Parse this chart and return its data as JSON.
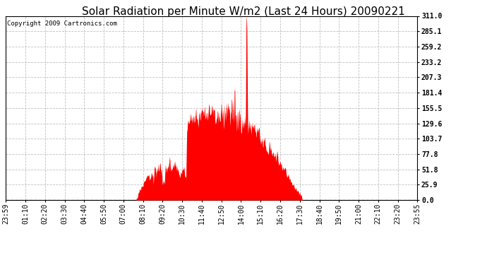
{
  "title": "Solar Radiation per Minute W/m2 (Last 24 Hours) 20090221",
  "copyright_text": "Copyright 2009 Cartronics.com",
  "bg_color": "#ffffff",
  "plot_bg_color": "#ffffff",
  "fill_color": "#ff0000",
  "line_color": "#ff0000",
  "grid_color": "#c0c0c0",
  "dashed_line_color": "#ff0000",
  "y_ticks": [
    0.0,
    25.9,
    51.8,
    77.8,
    103.7,
    129.6,
    155.5,
    181.4,
    207.3,
    233.2,
    259.2,
    285.1,
    311.0
  ],
  "x_tick_labels": [
    "23:59",
    "01:10",
    "02:20",
    "03:30",
    "04:40",
    "05:50",
    "07:00",
    "08:10",
    "09:20",
    "10:30",
    "11:40",
    "12:50",
    "14:00",
    "15:10",
    "16:20",
    "17:30",
    "18:40",
    "19:50",
    "21:00",
    "22:10",
    "23:20",
    "23:55"
  ],
  "y_max": 311.0,
  "y_min": 0.0,
  "title_fontsize": 11,
  "axis_fontsize": 7,
  "copyright_fontsize": 6.5,
  "n_points": 1440
}
